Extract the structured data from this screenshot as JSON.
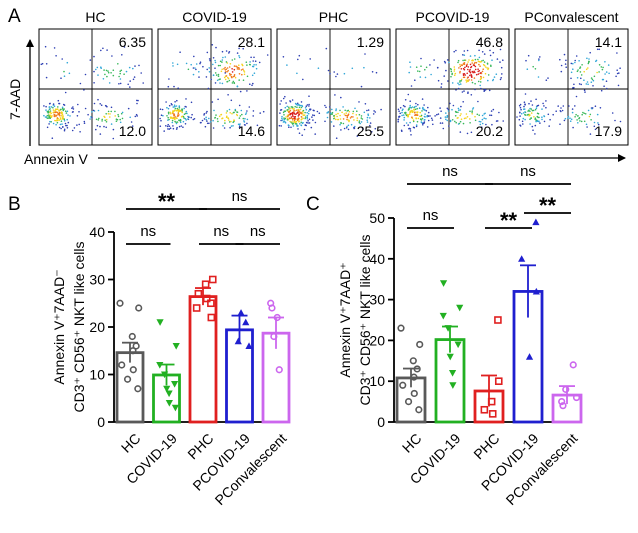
{
  "panels": {
    "a": {
      "letter": "A",
      "y_axis_label": "7-AAD",
      "x_axis_label": "Annexin V",
      "flow_plots": [
        {
          "title": "HC",
          "upper_right": "6.35",
          "lower_right": "12.0"
        },
        {
          "title": "COVID-19",
          "upper_right": "28.1",
          "lower_right": "14.6"
        },
        {
          "title": "PHC",
          "upper_right": "1.29",
          "lower_right": "25.5"
        },
        {
          "title": "PCOVID-19",
          "upper_right": "46.8",
          "lower_right": "20.2"
        },
        {
          "title": "PConvalescent",
          "upper_right": "14.1",
          "lower_right": "17.9"
        }
      ]
    },
    "b": {
      "letter": "B"
    },
    "c": {
      "letter": "C"
    }
  },
  "colors": {
    "HC": "#595959",
    "COVID-19": "#22b022",
    "PHC": "#e02020",
    "PCOVID-19": "#1f1fcf",
    "PConvalescent": "#cc66ee"
  },
  "chart_data": [
    {
      "panel": "B",
      "type": "bar",
      "categories": [
        "HC",
        "COVID-19",
        "PHC",
        "PCOVID-19",
        "PConvalescent"
      ],
      "values": [
        14.6,
        9.9,
        26.4,
        19.4,
        18.7
      ],
      "sem": [
        2.1,
        2.2,
        1.8,
        3.0,
        3.3
      ],
      "points": [
        [
          25,
          24,
          18,
          16,
          15,
          12,
          11,
          9,
          7
        ],
        [
          21,
          16,
          12,
          10,
          8,
          7,
          6,
          4,
          3
        ],
        [
          30,
          29,
          27,
          26,
          25,
          24,
          22
        ],
        [
          23,
          21,
          17,
          16
        ],
        [
          25,
          24,
          22,
          18,
          11
        ]
      ],
      "ylabel_line1": "Annexin V⁺7AAD⁻",
      "ylabel_line2": "CD3⁺ CD56⁺ NKT like cells",
      "ylim": [
        0,
        40
      ],
      "yticks": [
        0,
        10,
        20,
        30,
        40
      ],
      "tick_labels": [
        "0",
        "10",
        "20",
        "30",
        "40"
      ],
      "significance": [
        {
          "from": 0,
          "to": 2,
          "label": "**",
          "tier": 2
        },
        {
          "from": 2,
          "to": 4,
          "label": "ns",
          "tier": 2
        },
        {
          "from": 0,
          "to": 1,
          "label": "ns",
          "tier": 1
        },
        {
          "from": 2,
          "to": 3,
          "label": "ns",
          "tier": 1
        },
        {
          "from": 3,
          "to": 4,
          "label": "ns",
          "tier": 1
        }
      ]
    },
    {
      "panel": "C",
      "type": "bar",
      "categories": [
        "HC",
        "COVID-19",
        "PHC",
        "PCOVID-19",
        "PConvalescent"
      ],
      "values": [
        10.8,
        20.2,
        7.6,
        32.0,
        6.6
      ],
      "sem": [
        2.3,
        3.2,
        3.8,
        6.4,
        2.2
      ],
      "points": [
        [
          23,
          19,
          15,
          13,
          11,
          9,
          7,
          5,
          3
        ],
        [
          34,
          28,
          26,
          23,
          19,
          16,
          12,
          9
        ],
        [
          25,
          10,
          5,
          3,
          2
        ],
        [
          49,
          40,
          32,
          16
        ],
        [
          14,
          8,
          6,
          5,
          4
        ]
      ],
      "ylabel_line1": "Annexin V⁺7AAD⁺",
      "ylabel_line2": "CD3⁺ CD56⁺ NKT like cells",
      "ylim": [
        0,
        50
      ],
      "yticks": [
        0,
        10,
        20,
        30,
        40,
        50
      ],
      "tick_labels": [
        "0",
        "10",
        "20",
        "30",
        "40",
        "50"
      ],
      "significance": [
        {
          "from": 0,
          "to": 2,
          "label": "ns",
          "tier": 3
        },
        {
          "from": 2,
          "to": 4,
          "label": "ns",
          "tier": 3
        },
        {
          "from": 0,
          "to": 1,
          "label": "ns",
          "tier": 1
        },
        {
          "from": 2,
          "to": 3,
          "label": "**",
          "tier": 1
        },
        {
          "from": 3,
          "to": 4,
          "label": "**",
          "tier": 2
        }
      ]
    }
  ]
}
